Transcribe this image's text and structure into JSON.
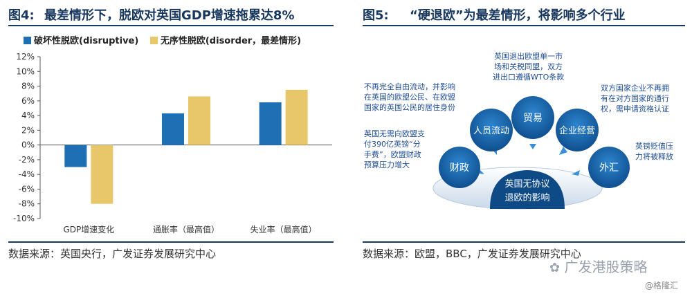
{
  "left": {
    "title_fig": "图4:",
    "title_text": "最差情形下，脱欧对英国GDP增速拖累达8%",
    "source": "数据来源：英国央行，广发证券发展研究中心"
  },
  "right": {
    "title_fig": "图5:",
    "title_text": "“硬退欧”为最差情形，将影响多个行业",
    "source": "数据来源：欧盟，BBC，广发证券发展研究中心",
    "center_label_1": "英国无协议",
    "center_label_2": "退欧的影响",
    "circles": {
      "finance": "财政",
      "labor": "人员流动",
      "trade": "贸易",
      "business": "企业经营",
      "fx": "外汇"
    },
    "annotations": {
      "trade": [
        "英国退出欧盟单一市",
        "场和关税同盟，双方",
        "进出口遵循WTO条款"
      ],
      "labor": [
        "不再完全自由流动，并影响",
        "在英国的欧盟公民、在欧盟",
        "国家的英国公民的居住身份"
      ],
      "finance": [
        "英国无需向欧盟支",
        "付390亿英镑“分",
        "手费”，欧盟财政",
        "预算压力增大"
      ],
      "business": [
        "双方国家企业不再拥",
        "有在对方国家的通行",
        "权，需申请资格认证"
      ],
      "fx": [
        "英镑贬值压",
        "力将被释放"
      ]
    },
    "colors": {
      "circle": "#1f6fb5",
      "circle_dark": "#0c3d6e",
      "arrow": "#3a8fd6"
    }
  },
  "watermark": "广发港股策略",
  "watermark2": "@格隆汇",
  "chart_data": {
    "type": "bar",
    "categories": [
      "GDP增速变化",
      "通胀率（最高值）",
      "失业率（最高值）"
    ],
    "series": [
      {
        "name": "破坏性脱欧(disruptive)",
        "color": "#1f6fb5",
        "values": [
          -3.0,
          4.3,
          5.8
        ]
      },
      {
        "name": "无序性脱欧(disorder，最差情形)",
        "color": "#e8c76a",
        "values": [
          -8.0,
          6.6,
          7.5
        ]
      }
    ],
    "ylim": [
      -10,
      12
    ],
    "yticks": [
      "-10%",
      "-8%",
      "-6%",
      "-4%",
      "-2%",
      "0%",
      "2%",
      "4%",
      "6%",
      "8%",
      "10%",
      "12%"
    ],
    "ytick_values": [
      -10,
      -8,
      -6,
      -4,
      -2,
      0,
      2,
      4,
      6,
      8,
      10,
      12
    ],
    "legend_position": "top-left",
    "grid": false
  }
}
